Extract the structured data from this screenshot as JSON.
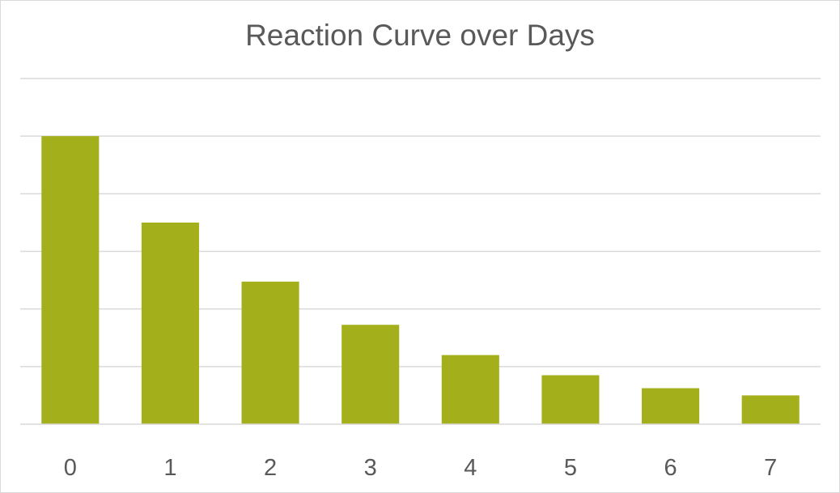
{
  "chart_data": {
    "type": "bar",
    "title": "Reaction Curve over Days",
    "xlabel": "",
    "ylabel": "",
    "categories": [
      "0",
      "1",
      "2",
      "3",
      "4",
      "5",
      "6",
      "7"
    ],
    "values": [
      100,
      70,
      49.5,
      34.5,
      24,
      17,
      12.5,
      10
    ],
    "ylim": [
      0,
      120
    ],
    "grid": true,
    "legend": "none",
    "colors": {
      "bar": "#A4B01B",
      "grid": "#D9D9D9",
      "axis": "#D9D9D9",
      "text": "#595959"
    }
  }
}
